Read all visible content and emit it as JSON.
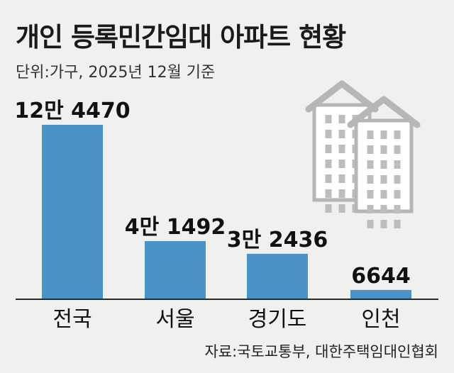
{
  "title": "개인 등록민간임대 아파트 현황",
  "subtitle": "단위:가구, 2025년 12월 기준",
  "source": "자료:국토교통부, 대한주택임대인협회",
  "colors": {
    "bar": "#4a93c9",
    "building_fill": "#ffffff",
    "building_stroke": "#b6b6b6",
    "window": "#bdbdbd",
    "baseline": "#2a2a2a"
  },
  "icon": "apartment-buildings-icon",
  "chart_data": {
    "type": "bar",
    "categories": [
      "전국",
      "서울",
      "경기도",
      "인천"
    ],
    "values": [
      124470,
      41492,
      32436,
      6644
    ],
    "data_labels": [
      "12만 4470",
      "4만 1492",
      "3만 2436",
      "6644"
    ],
    "ylim": [
      0,
      124470
    ],
    "grid": false,
    "legend": "none"
  }
}
